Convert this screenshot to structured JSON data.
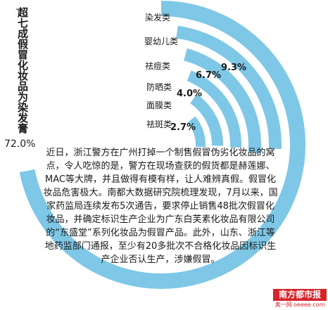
{
  "chart_data": {
    "type": "radial-bar",
    "title": "超七成假冒化妆品为染发膏",
    "outer_value_label": "72.0%",
    "categories": [
      "染发类",
      "婴幼儿类",
      "祛痘类",
      "防晒类",
      "面膜类",
      "祛斑类"
    ],
    "values": [
      72.0,
      null,
      9.3,
      6.7,
      4.0,
      2.7
    ],
    "value_labels": [
      "",
      "",
      "9.3%",
      "6.7%",
      "4.0%",
      "2.7%"
    ]
  },
  "text": {
    "title_arrow": "→",
    "paragraph": "近日，浙江警方在广州打掉一个制售假冒伪劣化妆品的窝点，令人吃惊的是，警方在现场查获的假货都是赫莲娜、MAC等大牌，并且做得有模有样，让人难辨真假。假冒化妆品危害极大。南都大数据研究院梳理发现，7月以来，国家药监局连续发布5次通告，要求停止销售48批次假冒化妆品，并确定标识生产企业为广东白芙素化妆品有限公司的“东盛堂”系列化妆品为假冒产品。此外，山东、浙江等地药监部门通报，至少有20多批次不合格化妆品因标识生产企业否认生产，涉嫌假冒。"
  },
  "logo": {
    "name": "南方都市报",
    "site": "奥一网 oeeee.com"
  },
  "colors": {
    "arc": "#7ec7e6",
    "text": "#1a1a1a",
    "brand": "#d7242b"
  }
}
